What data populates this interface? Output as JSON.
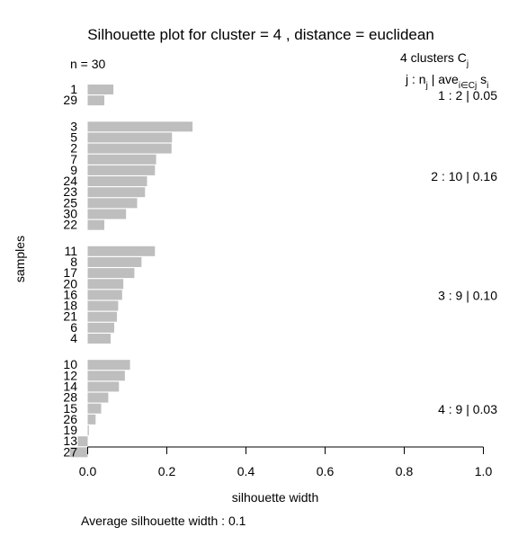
{
  "chart_data": {
    "type": "bar",
    "orientation": "horizontal",
    "title": "Silhouette plot for cluster = 4 , distance = euclidean",
    "n_label": "n = 30",
    "clusters_header": "4  clusters  C",
    "clusters_header_sub": "j",
    "legend_header": {
      "prefix": "j :  n",
      "prefix_sub": "j",
      "mid": " | ave",
      "mid_sub": "i∈Cj",
      "suffix": "  s",
      "suffix_sub": "i"
    },
    "ylabel": "samples",
    "xlabel": "silhouette width",
    "xlim": [
      -0.05,
      1.0
    ],
    "xticks": [
      "0.0",
      "0.2",
      "0.4",
      "0.6",
      "0.8",
      "1.0"
    ],
    "bar_color": "#bebebe",
    "footer": "Average silhouette width :  0.1",
    "clusters": [
      {
        "label": "1 :   2  |  0.05",
        "samples": [
          {
            "id": "1",
            "width": 0.065
          },
          {
            "id": "29",
            "width": 0.042
          }
        ]
      },
      {
        "label": "2 :   10  |  0.16",
        "samples": [
          {
            "id": "3",
            "width": 0.265
          },
          {
            "id": "5",
            "width": 0.213
          },
          {
            "id": "2",
            "width": 0.212
          },
          {
            "id": "7",
            "width": 0.173
          },
          {
            "id": "9",
            "width": 0.17
          },
          {
            "id": "24",
            "width": 0.15
          },
          {
            "id": "23",
            "width": 0.145
          },
          {
            "id": "25",
            "width": 0.125
          },
          {
            "id": "30",
            "width": 0.097
          },
          {
            "id": "22",
            "width": 0.042
          }
        ]
      },
      {
        "label": "3 :   9  |  0.10",
        "samples": [
          {
            "id": "11",
            "width": 0.17
          },
          {
            "id": "8",
            "width": 0.136
          },
          {
            "id": "17",
            "width": 0.118
          },
          {
            "id": "20",
            "width": 0.09
          },
          {
            "id": "16",
            "width": 0.087
          },
          {
            "id": "18",
            "width": 0.077
          },
          {
            "id": "21",
            "width": 0.074
          },
          {
            "id": "6",
            "width": 0.067
          },
          {
            "id": "4",
            "width": 0.058
          }
        ]
      },
      {
        "label": "4 :   9  |  0.03",
        "samples": [
          {
            "id": "10",
            "width": 0.107
          },
          {
            "id": "12",
            "width": 0.094
          },
          {
            "id": "14",
            "width": 0.079
          },
          {
            "id": "28",
            "width": 0.052
          },
          {
            "id": "15",
            "width": 0.034
          },
          {
            "id": "26",
            "width": 0.02
          },
          {
            "id": "19",
            "width": 0.003
          },
          {
            "id": "13",
            "width": -0.025
          },
          {
            "id": "27",
            "width": -0.045
          }
        ]
      }
    ]
  }
}
